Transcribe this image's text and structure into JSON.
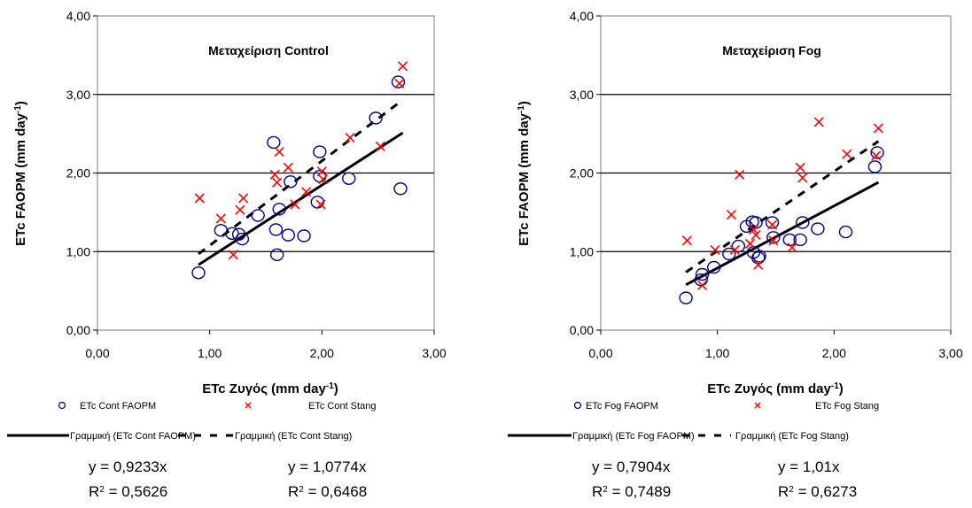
{
  "chart_data": [
    {
      "type": "scatter",
      "title": "Μεταχείριση Control",
      "xlabel": "ETc Ζυγός (mm day",
      "xlabel_sup": "-1",
      "xlabel_end": ")",
      "ylabel": "ETc FAOPM (mm day",
      "ylabel_sup": "-1",
      "ylabel_end": ")",
      "xlim": [
        0,
        3
      ],
      "ylim": [
        0,
        4
      ],
      "xticks": [
        "0,00",
        "1,00",
        "2,00",
        "3,00"
      ],
      "yticks": [
        "0,00",
        "1,00",
        "2,00",
        "3,00",
        "4,00"
      ],
      "grid": "horizontal",
      "series": [
        {
          "name": "ETc Cont FAOPM",
          "marker": "circle",
          "color": "#000080",
          "points": [
            [
              0.9,
              0.73
            ],
            [
              1.1,
              1.27
            ],
            [
              1.2,
              1.23
            ],
            [
              1.26,
              1.22
            ],
            [
              1.29,
              1.16
            ],
            [
              1.43,
              1.46
            ],
            [
              1.57,
              2.39
            ],
            [
              1.59,
              1.28
            ],
            [
              1.6,
              0.96
            ],
            [
              1.62,
              1.54
            ],
            [
              1.7,
              1.21
            ],
            [
              1.72,
              1.89
            ],
            [
              1.84,
              1.2
            ],
            [
              1.96,
              1.63
            ],
            [
              1.98,
              1.96
            ],
            [
              1.98,
              2.27
            ],
            [
              2.24,
              1.93
            ],
            [
              2.48,
              2.7
            ],
            [
              2.68,
              3.16
            ],
            [
              2.7,
              1.8
            ]
          ]
        },
        {
          "name": "ETc Cont Stang",
          "marker": "x",
          "color": "#ff0000",
          "points": [
            [
              0.91,
              1.68
            ],
            [
              1.1,
              1.42
            ],
            [
              1.21,
              0.96
            ],
            [
              1.27,
              1.53
            ],
            [
              1.3,
              1.68
            ],
            [
              1.58,
              1.98
            ],
            [
              1.6,
              1.88
            ],
            [
              1.62,
              2.27
            ],
            [
              1.7,
              2.07
            ],
            [
              1.76,
              1.6
            ],
            [
              1.86,
              1.76
            ],
            [
              1.99,
              1.6
            ],
            [
              2.0,
              2.02
            ],
            [
              2.01,
              1.92
            ],
            [
              2.25,
              2.45
            ],
            [
              2.52,
              2.34
            ],
            [
              2.69,
              3.14
            ],
            [
              2.72,
              3.36
            ]
          ]
        }
      ],
      "trendlines": [
        {
          "name": "Γραμμική (ETc Cont FAOPM)",
          "slope": 0.9233,
          "x_range": [
            0.9,
            2.72
          ],
          "style": "solid"
        },
        {
          "name": "Γραμμική (ETc Cont Stang)",
          "slope": 1.0774,
          "x_range": [
            0.9,
            2.72
          ],
          "style": "dashed"
        }
      ],
      "equations": [
        {
          "eq": "y = 0,9233x",
          "r2_prefix": "R",
          "r2_sup": "2",
          "r2_value": " = 0,5626"
        },
        {
          "eq": "y = 1,0774x",
          "r2_prefix": "R",
          "r2_sup": "2",
          "r2_value": " = 0,6468"
        }
      ]
    },
    {
      "type": "scatter",
      "title": "Μεταχείριση Fog",
      "xlabel": "ETc Ζυγός (mm day",
      "xlabel_sup": "-1",
      "xlabel_end": ")",
      "ylabel": "ETc FAOPM (mm day",
      "ylabel_sup": "-1",
      "ylabel_end": ")",
      "xlim": [
        0,
        3
      ],
      "ylim": [
        0,
        4
      ],
      "xticks": [
        "0,00",
        "1,00",
        "2,00",
        "3,00"
      ],
      "yticks": [
        "0,00",
        "1,00",
        "2,00",
        "3,00",
        "4,00"
      ],
      "grid": "horizontal",
      "series": [
        {
          "name": "ETc Fog FAOPM",
          "marker": "circle",
          "color": "#000080",
          "points": [
            [
              0.73,
              0.41
            ],
            [
              0.86,
              0.64
            ],
            [
              0.87,
              0.71
            ],
            [
              0.97,
              0.8
            ],
            [
              1.1,
              0.97
            ],
            [
              1.18,
              1.07
            ],
            [
              1.25,
              1.32
            ],
            [
              1.3,
              1.38
            ],
            [
              1.31,
              0.99
            ],
            [
              1.33,
              1.37
            ],
            [
              1.35,
              0.92
            ],
            [
              1.36,
              0.94
            ],
            [
              1.47,
              1.37
            ],
            [
              1.48,
              1.18
            ],
            [
              1.62,
              1.15
            ],
            [
              1.71,
              1.15
            ],
            [
              1.73,
              1.37
            ],
            [
              1.86,
              1.29
            ],
            [
              2.1,
              1.25
            ],
            [
              2.35,
              2.08
            ],
            [
              2.37,
              2.26
            ]
          ]
        },
        {
          "name": "ETc Fog Stang",
          "marker": "x",
          "color": "#ff0000",
          "points": [
            [
              0.74,
              1.14
            ],
            [
              0.87,
              0.57
            ],
            [
              0.98,
              1.02
            ],
            [
              1.12,
              1.47
            ],
            [
              1.15,
              1.02
            ],
            [
              1.19,
              1.98
            ],
            [
              1.28,
              1.1
            ],
            [
              1.31,
              1.28
            ],
            [
              1.33,
              1.21
            ],
            [
              1.35,
              0.83
            ],
            [
              1.47,
              1.34
            ],
            [
              1.48,
              1.14
            ],
            [
              1.64,
              1.05
            ],
            [
              1.71,
              2.07
            ],
            [
              1.73,
              1.94
            ],
            [
              1.87,
              2.65
            ],
            [
              2.11,
              2.24
            ],
            [
              2.36,
              2.22
            ],
            [
              2.38,
              2.57
            ]
          ]
        }
      ],
      "trendlines": [
        {
          "name": "Γραμμική (ETc Fog FAOPM)",
          "slope": 0.7904,
          "x_range": [
            0.73,
            2.38
          ],
          "style": "solid"
        },
        {
          "name": "Γραμμική (ETc Fog Stang)",
          "slope": 1.01,
          "x_range": [
            0.73,
            2.38
          ],
          "style": "dashed"
        }
      ],
      "equations": [
        {
          "eq": "y = 0,7904x",
          "r2_prefix": "R",
          "r2_sup": "2",
          "r2_value": " = 0,7489"
        },
        {
          "eq": "y = 1,01x",
          "r2_prefix": "R",
          "r2_sup": "2",
          "r2_value": " = 0,6273"
        }
      ]
    }
  ]
}
